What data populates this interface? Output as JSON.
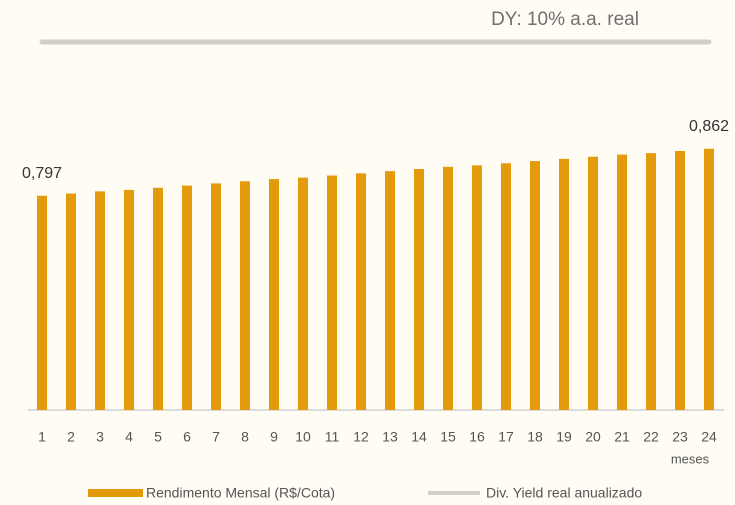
{
  "chart_data": {
    "type": "bar",
    "annotation": "DY: 10% a.a. real",
    "x_label": "meses",
    "categories": [
      "1",
      "2",
      "3",
      "4",
      "5",
      "6",
      "7",
      "8",
      "9",
      "10",
      "11",
      "12",
      "13",
      "14",
      "15",
      "16",
      "17",
      "18",
      "19",
      "20",
      "21",
      "22",
      "23",
      "24"
    ],
    "series": [
      {
        "name": "Rendimento Mensal (R$/Cota)",
        "color": "#e39a0c",
        "type": "bar",
        "values": [
          0.797,
          0.8,
          0.803,
          0.805,
          0.808,
          0.811,
          0.814,
          0.817,
          0.82,
          0.822,
          0.825,
          0.828,
          0.831,
          0.834,
          0.837,
          0.839,
          0.842,
          0.845,
          0.848,
          0.851,
          0.854,
          0.856,
          0.859,
          0.862
        ],
        "value_labels": [
          "0,797",
          null,
          null,
          null,
          null,
          null,
          null,
          null,
          null,
          null,
          null,
          null,
          null,
          null,
          null,
          null,
          null,
          null,
          null,
          null,
          null,
          null,
          null,
          "0,862"
        ]
      },
      {
        "name": "Div. Yield real anualizado",
        "color": "#d3cfc6",
        "type": "line",
        "axis": "y2",
        "values": [
          10,
          10,
          10,
          10,
          10,
          10,
          10,
          10,
          10,
          10,
          10,
          10,
          10,
          10,
          10,
          10,
          10,
          10,
          10,
          10,
          10,
          10,
          10,
          10
        ]
      }
    ],
    "ylim": [
      0.5,
      1.01
    ],
    "y2lim": [
      0,
      10
    ]
  }
}
